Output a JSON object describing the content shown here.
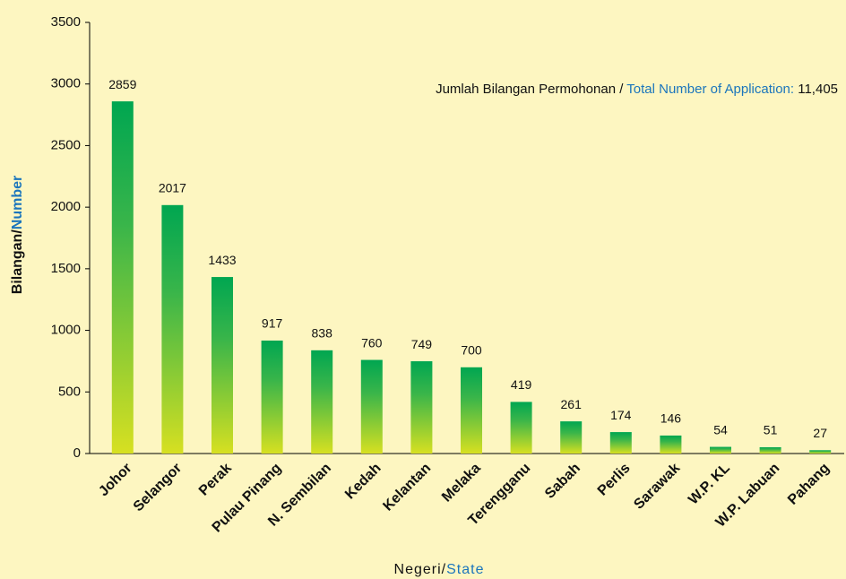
{
  "chart_data": {
    "type": "bar",
    "annotation": {
      "text": "Jumlah Bilangan Permohonan /",
      "highlight": "Total Number of Application:",
      "total": "11,405"
    },
    "y_label": {
      "text": "Bilangan/",
      "highlight": "Number"
    },
    "x_label": {
      "text": "Negeri/",
      "highlight": "State"
    },
    "categories": [
      "Johor",
      "Selangor",
      "Perak",
      "Pulau Pinang",
      "N. Sembilan",
      "Kedah",
      "Kelantan",
      "Melaka",
      "Terengganu",
      "Sabah",
      "Perlis",
      "Sarawak",
      "W.P. KL",
      "W.P. Labuan",
      "Pahang"
    ],
    "values": [
      2859,
      2017,
      1433,
      917,
      838,
      760,
      749,
      700,
      419,
      261,
      174,
      146,
      54,
      51,
      27
    ],
    "color": "#00a651",
    "ylim": [
      0,
      3500
    ],
    "yticks": [
      0,
      500,
      1000,
      1500,
      2000,
      2500,
      3000,
      3500
    ]
  }
}
